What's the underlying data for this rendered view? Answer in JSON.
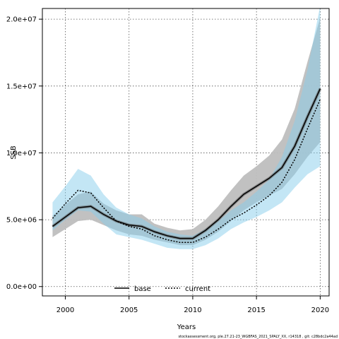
{
  "chart_data": {
    "type": "line",
    "xlabel": "Years",
    "ylabel": "SSB",
    "xlim": [
      1998.2,
      2020.7
    ],
    "ylim": [
      -700000,
      20800000
    ],
    "xticks": [
      2000,
      2005,
      2010,
      2015,
      2020
    ],
    "xtick_labels": [
      "2000",
      "2005",
      "2010",
      "2015",
      "2020"
    ],
    "yticks": [
      0,
      5000000,
      10000000,
      15000000,
      20000000
    ],
    "ytick_labels": [
      "0.0e+00",
      "5.0e+06",
      "1.0e+07",
      "1.5e+07",
      "2.0e+07"
    ],
    "grid": true,
    "legend_position": "bottom-center",
    "caption": "stockassessment.org, ple.27.21-23_WGBFAS_2021_SPALY_XX, r14318 , git: c28bdc2a44ad",
    "series": [
      {
        "name": "base",
        "line_style": "solid",
        "line_color": "#000000",
        "band_color": "#bebebe",
        "x": [
          1999,
          2000,
          2001,
          2002,
          2003,
          2004,
          2005,
          2006,
          2007,
          2008,
          2009,
          2010,
          2011,
          2012,
          2013,
          2014,
          2015,
          2016,
          2017,
          2018,
          2019,
          2020
        ],
        "values": [
          4500000,
          5200000,
          5900000,
          6000000,
          5400000,
          4900000,
          4600000,
          4500000,
          4100000,
          3800000,
          3600000,
          3600000,
          4200000,
          5000000,
          6000000,
          6900000,
          7500000,
          8100000,
          8900000,
          10500000,
          12700000,
          14800000
        ],
        "lower": [
          3700000,
          4300000,
          4900000,
          5000000,
          4600000,
          4200000,
          3900000,
          3800000,
          3500000,
          3300000,
          3100000,
          3100000,
          3500000,
          4100000,
          4900000,
          5700000,
          6300000,
          6800000,
          7300000,
          8400000,
          9700000,
          10800000
        ],
        "upper": [
          5300000,
          6100000,
          6900000,
          7100000,
          6200000,
          5700000,
          5400000,
          5400000,
          4700000,
          4400000,
          4200000,
          4300000,
          5000000,
          6000000,
          7200000,
          8300000,
          9000000,
          9800000,
          11000000,
          13300000,
          16800000,
          20100000
        ]
      },
      {
        "name": "current",
        "line_style": "dotted",
        "line_color": "#000000",
        "band_color": "#87ceeb",
        "x": [
          1999,
          2000,
          2001,
          2002,
          2003,
          2004,
          2005,
          2006,
          2007,
          2008,
          2009,
          2010,
          2011,
          2012,
          2013,
          2014,
          2015,
          2016,
          2017,
          2018,
          2019,
          2020
        ],
        "values": [
          5100000,
          6200000,
          7200000,
          7000000,
          5900000,
          4900000,
          4500000,
          4300000,
          3800000,
          3500000,
          3300000,
          3300000,
          3700000,
          4300000,
          5000000,
          5500000,
          6100000,
          6800000,
          7800000,
          9500000,
          11800000,
          14000000
        ],
        "lower": [
          4200000,
          5000000,
          5700000,
          5600000,
          4700000,
          3900000,
          3700000,
          3500000,
          3200000,
          2900000,
          2800000,
          2800000,
          3100000,
          3600000,
          4300000,
          4800000,
          5200000,
          5700000,
          6300000,
          7400000,
          8400000,
          9000000
        ],
        "upper": [
          6300000,
          7500000,
          8800000,
          8300000,
          6900000,
          5900000,
          5400000,
          5100000,
          4500000,
          4100000,
          3900000,
          3800000,
          4300000,
          4900000,
          5700000,
          6300000,
          7100000,
          8000000,
          9700000,
          12400000,
          16200000,
          21000000
        ]
      }
    ]
  }
}
